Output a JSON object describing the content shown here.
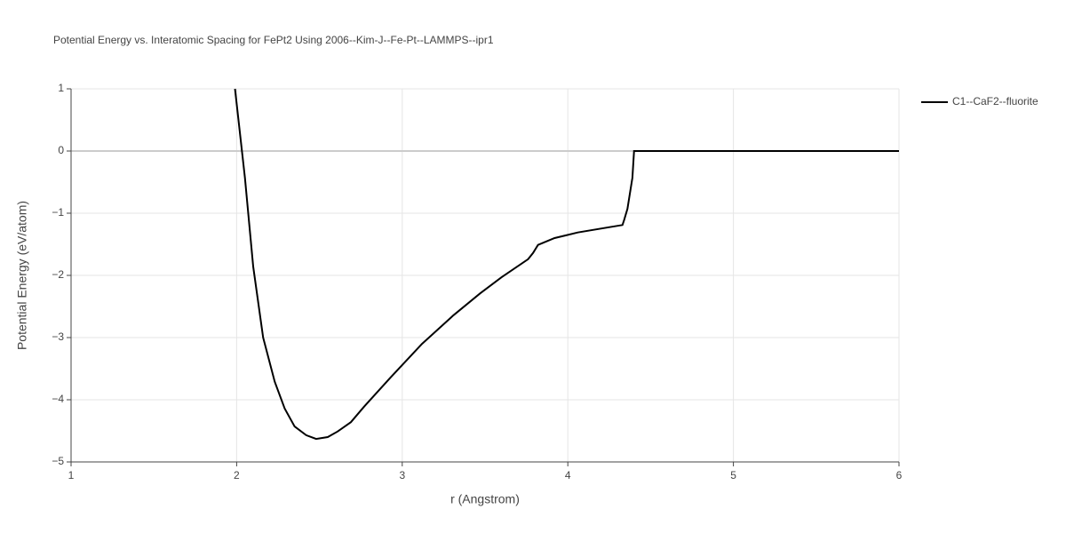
{
  "chart_data": {
    "type": "line",
    "title": "Potential Energy vs. Interatomic Spacing for FePt2 Using 2006--Kim-J--Fe-Pt--LAMMPS--ipr1",
    "xlabel": "r (Angstrom)",
    "ylabel": "Potential Energy (eV/atom)",
    "x": [
      1.99,
      2.05,
      2.1,
      2.16,
      2.23,
      2.29,
      2.35,
      2.42,
      2.48,
      2.55,
      2.61,
      2.69,
      2.77,
      2.93,
      3.12,
      3.31,
      3.47,
      3.6,
      3.76,
      3.79,
      3.82,
      3.92,
      4.06,
      4.33,
      4.34,
      4.36,
      4.39,
      4.4,
      6.0
    ],
    "series": [
      {
        "name": "C1--CaF2--fluorite",
        "color": "#000000",
        "values": [
          1.0,
          -0.43,
          -1.86,
          -3.0,
          -3.71,
          -4.14,
          -4.43,
          -4.57,
          -4.63,
          -4.6,
          -4.51,
          -4.36,
          -4.11,
          -3.64,
          -3.1,
          -2.64,
          -2.29,
          -2.03,
          -1.74,
          -1.64,
          -1.51,
          -1.4,
          -1.31,
          -1.19,
          -1.11,
          -0.93,
          -0.43,
          0,
          0
        ]
      }
    ],
    "xlim": [
      1,
      6
    ],
    "xticks": [
      1,
      2,
      3,
      4,
      5,
      6
    ],
    "ylim": [
      -5,
      1
    ],
    "yticks": [
      {
        "value": -5,
        "label": "−5"
      },
      {
        "value": -4,
        "label": "−4"
      },
      {
        "value": -3,
        "label": "−3"
      },
      {
        "value": -2,
        "label": "−2"
      },
      {
        "value": -1,
        "label": "−1"
      },
      0,
      1
    ],
    "grid": true,
    "legend": "right"
  }
}
